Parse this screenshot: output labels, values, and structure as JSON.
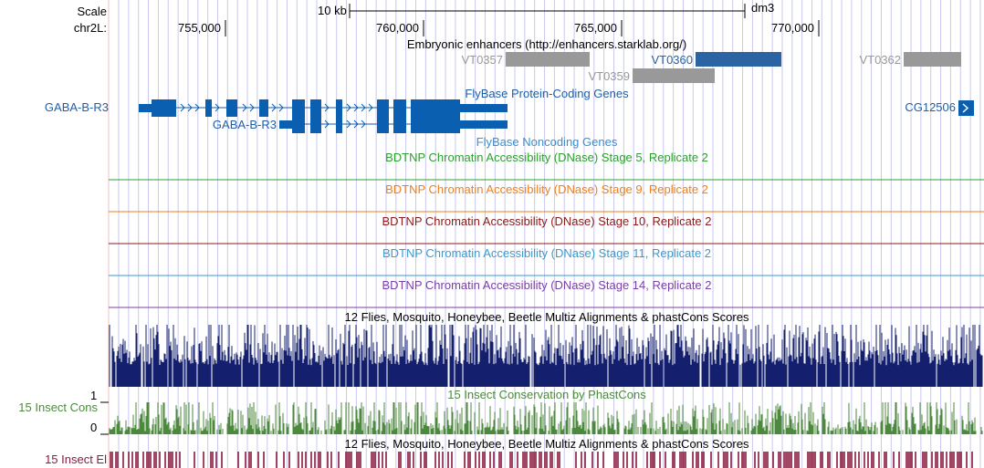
{
  "ruler": {
    "scale_label": "Scale",
    "scale_text": "10 kb",
    "assembly": "dm3",
    "chrom_label": "chr2L:",
    "ticks": [
      "755,000",
      "760,000",
      "765,000",
      "770,000"
    ]
  },
  "tracks": {
    "enhancers": {
      "title": "Embryonic enhancers (http://enhancers.starklab.org/)",
      "items": [
        "VT0357",
        "VT0359",
        "VT0360",
        "VT0362"
      ]
    },
    "protein_coding": {
      "title": "FlyBase Protein-Coding Genes",
      "gene_left": "GABA-B-R3",
      "gene_inner": "GABA-B-R3",
      "gene_right": "CG12506"
    },
    "noncoding": {
      "title": "FlyBase Noncoding Genes"
    },
    "dnase": [
      {
        "title": "BDTNP Chromatin Accessibility (DNase) Stage 5, Replicate 2",
        "color": "#2ca02c"
      },
      {
        "title": "BDTNP Chromatin Accessibility (DNase) Stage 9, Replicate 2",
        "color": "#ee7f1e"
      },
      {
        "title": "BDTNP Chromatin Accessibility (DNase) Stage 10, Replicate 2",
        "color": "#8b1a1a"
      },
      {
        "title": "BDTNP Chromatin Accessibility (DNase) Stage 11, Replicate 2",
        "color": "#3a9bd0"
      },
      {
        "title": "BDTNP Chromatin Accessibility (DNase) Stage 14, Replicate 2",
        "color": "#7b3fa8"
      }
    ],
    "multiz": {
      "title": "12 Flies, Mosquito, Honeybee, Beetle Multiz Alignments & phastCons Scores"
    },
    "insect_cons": {
      "title": "15 Insect Conservation by PhastCons",
      "label": "15 Insect Cons",
      "axis_max": "1",
      "axis_min": "0"
    },
    "multiz2": {
      "title": "12 Flies, Mosquito, Honeybee, Beetle Multiz Alignments & phastCons Scores"
    },
    "insect_el": {
      "label": "15 Insect El"
    }
  },
  "colors": {
    "gene_blue": "#0b5fb0",
    "enhancer_gray": "#999999",
    "enhancer_blue": "#2b63a3",
    "multiz_navy": "#14206e",
    "cons_green": "#4b8a3c",
    "el_maroon": "#8b1a3e",
    "grid_blue": "#c8c8f0",
    "gene_label_blue": "#1f5fa8",
    "noncoding_blue": "#3a8fd0"
  }
}
